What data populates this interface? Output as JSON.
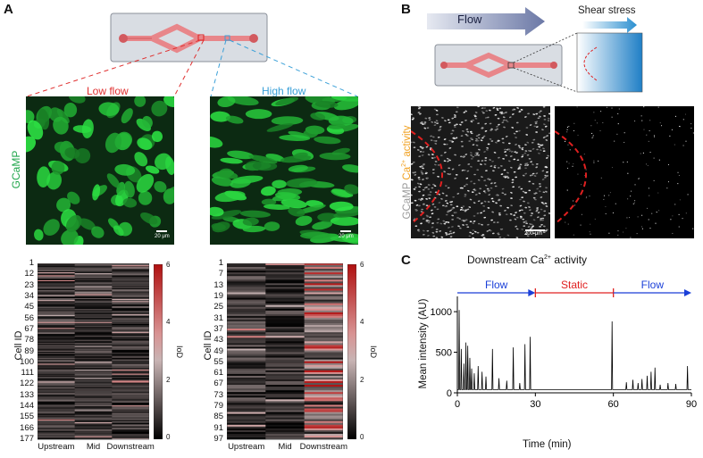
{
  "panels": {
    "A": {
      "letter": "A",
      "low_flow_label": "Low flow",
      "high_flow_label": "High flow",
      "channel_label": "GCaMP",
      "scalebar_left": "20 μm",
      "scalebar_right": "20 μm",
      "colors": {
        "low_flow": "#e03030",
        "high_flow": "#3aa0d8",
        "gcamp": "#1fa54a"
      }
    },
    "B": {
      "letter": "B",
      "flow_label": "Flow",
      "shear_label": "Shear stress",
      "ylabel_part1": "GCaMP",
      "ylabel_part2": "Ca",
      "ylabel_sup": "2+",
      "ylabel_part3": " activity",
      "scalebar": "200 μm",
      "colors": {
        "gcamp": "#9a9a9a",
        "ca_activity": "#f0a020",
        "boundary": "#e02020"
      }
    },
    "C": {
      "letter": "C"
    }
  },
  "heatmaps": [
    {
      "ylabel": "Cell ID",
      "yticks": [
        "1",
        "12",
        "23",
        "34",
        "45",
        "56",
        "67",
        "78",
        "89",
        "100",
        "111",
        "122",
        "133",
        "144",
        "155",
        "166",
        "177"
      ],
      "xticks": [
        "Upstream",
        "Mid",
        "Downstream"
      ],
      "colorbar_label": "IoD",
      "colorbar_ticks": [
        "0",
        "2",
        "4",
        "6"
      ]
    },
    {
      "ylabel": "Cell ID",
      "yticks": [
        "1",
        "7",
        "13",
        "19",
        "25",
        "31",
        "37",
        "43",
        "49",
        "55",
        "61",
        "67",
        "73",
        "79",
        "85",
        "91",
        "97"
      ],
      "xticks": [
        "Upstream",
        "Mid",
        "Downstream"
      ],
      "colorbar_label": "IoD",
      "colorbar_ticks": [
        "0",
        "2",
        "4",
        "6"
      ]
    }
  ],
  "chart_data": {
    "type": "line",
    "title": "Downstream Ca2+ activity",
    "title_main": "Downstream Ca",
    "title_sup": "2+",
    "title_end": " activity",
    "xlabel": "Time (min)",
    "ylabel": "Mean intensity (AU)",
    "xlim": [
      0,
      90
    ],
    "ylim": [
      0,
      1100
    ],
    "xticks": [
      0,
      30,
      60,
      90
    ],
    "yticks": [
      0,
      500,
      1000
    ],
    "annotations": [
      {
        "text": "Flow",
        "from": 0,
        "to": 30,
        "color": "#1a3fd8"
      },
      {
        "text": "Static",
        "from": 30,
        "to": 60,
        "color": "#e02020"
      },
      {
        "text": "Flow",
        "from": 60,
        "to": 90,
        "color": "#1a3fd8"
      }
    ],
    "baseline": 40,
    "spikes": [
      [
        0.7,
        1020
      ],
      [
        1.5,
        540
      ],
      [
        2.5,
        360
      ],
      [
        3.3,
        620
      ],
      [
        4.0,
        580
      ],
      [
        4.8,
        430
      ],
      [
        5.5,
        300
      ],
      [
        6.5,
        240
      ],
      [
        8.0,
        330
      ],
      [
        9.5,
        260
      ],
      [
        11.0,
        200
      ],
      [
        13.5,
        540
      ],
      [
        16.0,
        180
      ],
      [
        19.0,
        150
      ],
      [
        21.5,
        560
      ],
      [
        24.0,
        120
      ],
      [
        26.0,
        600
      ],
      [
        28.0,
        690
      ],
      [
        59.5,
        880
      ],
      [
        65.0,
        130
      ],
      [
        67.5,
        160
      ],
      [
        69.5,
        120
      ],
      [
        71.0,
        170
      ],
      [
        73.0,
        210
      ],
      [
        74.5,
        260
      ],
      [
        76.0,
        310
      ],
      [
        78.0,
        100
      ],
      [
        81.0,
        120
      ],
      [
        84.0,
        110
      ],
      [
        88.5,
        330
      ]
    ]
  }
}
